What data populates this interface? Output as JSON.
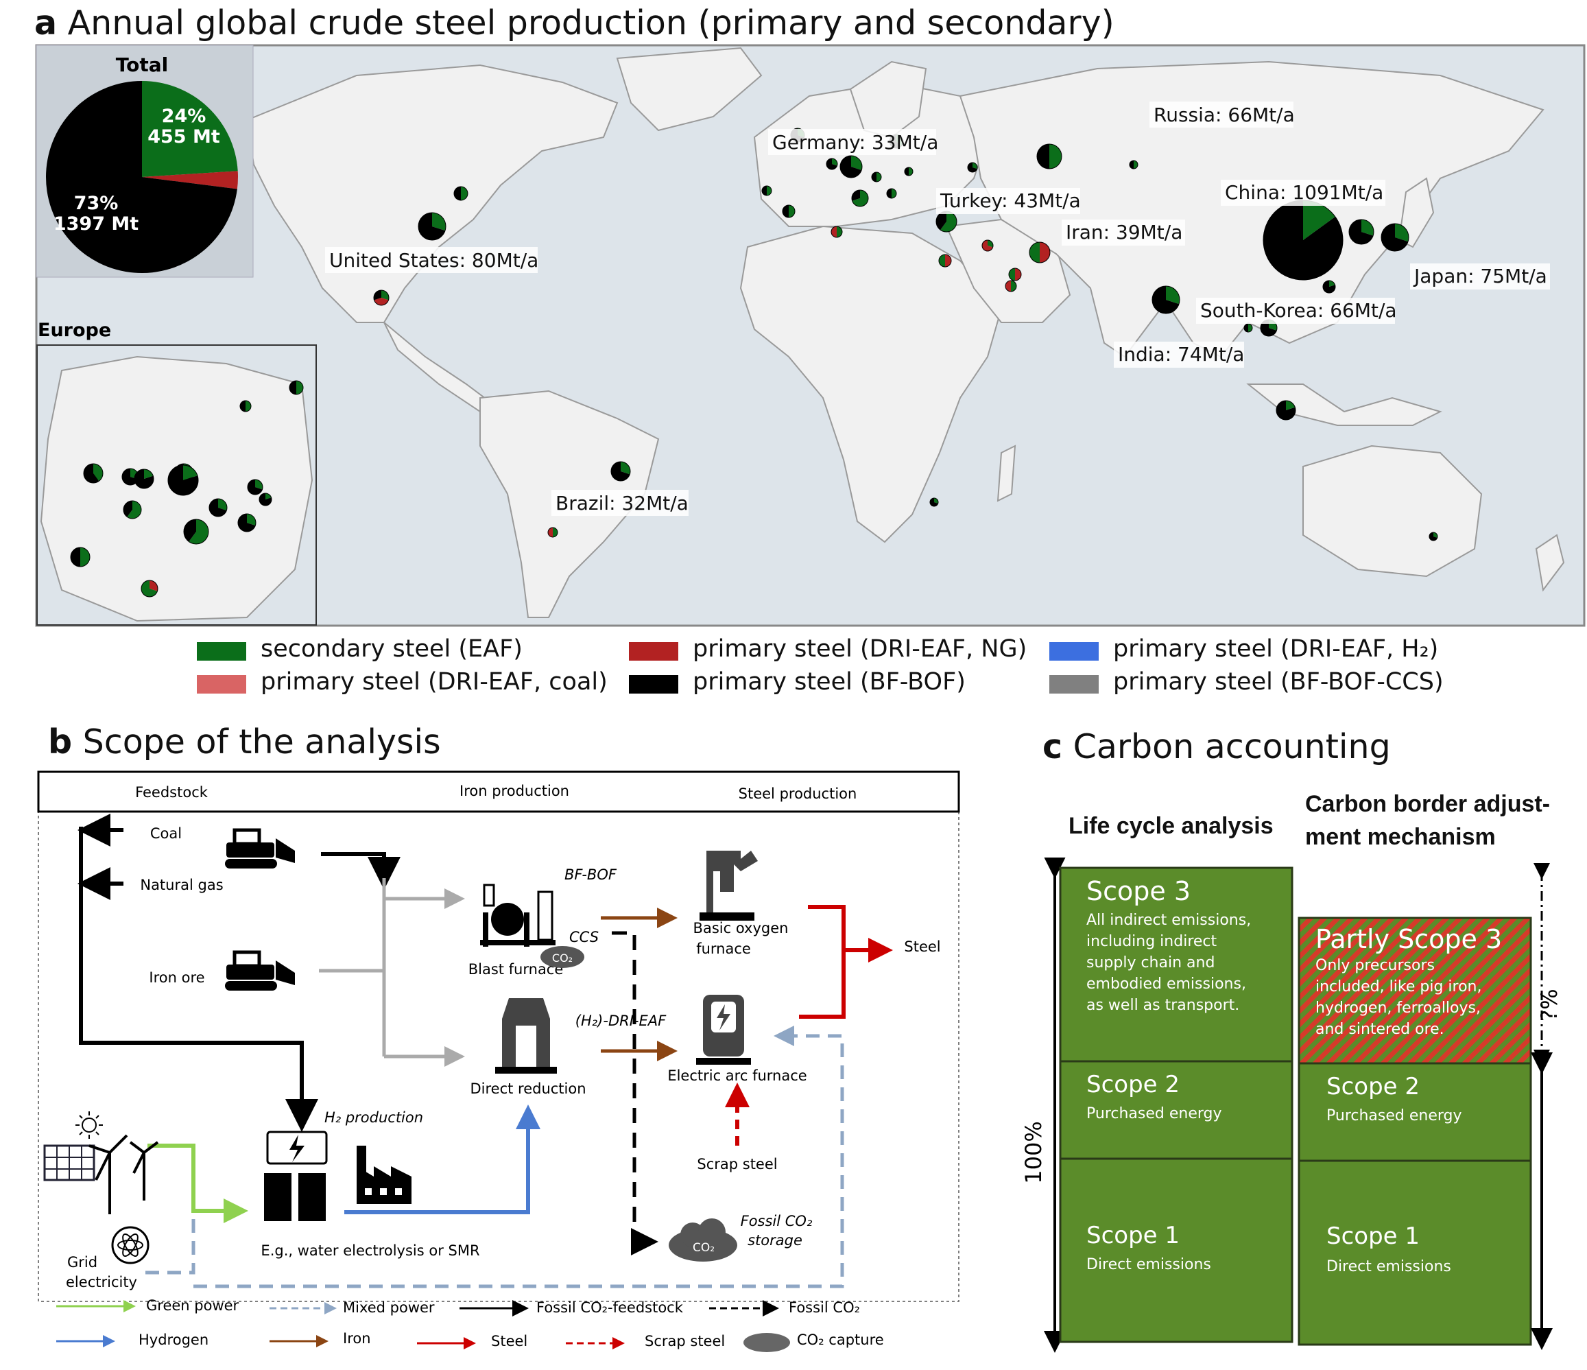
{
  "panel_a": {
    "letter": "a",
    "title": "Annual global crude steel production (primary and secondary)",
    "total": {
      "label": "Total",
      "secondary": {
        "pct": "24%",
        "amount": "455 Mt",
        "fraction": 0.24
      },
      "primary_ng": {
        "fraction": 0.03
      },
      "primary_bfbof": {
        "pct": "73%",
        "amount": "1397 Mt",
        "fraction": 0.73
      }
    },
    "europe_label": "Europe",
    "countries": [
      {
        "name": "United States: 80Mt/a"
      },
      {
        "name": "Germany: 33Mt/a"
      },
      {
        "name": "Russia: 66Mt/a"
      },
      {
        "name": "Turkey: 43Mt/a"
      },
      {
        "name": "Iran: 39Mt/a"
      },
      {
        "name": "China: 1091Mt/a"
      },
      {
        "name": "Japan: 75Mt/a"
      },
      {
        "name": "South-Korea: 66Mt/a"
      },
      {
        "name": "India: 74Mt/a"
      },
      {
        "name": "Brazil: 32Mt/a"
      }
    ],
    "legend": [
      {
        "label": "secondary steel (EAF)",
        "color": "#0b6e1a"
      },
      {
        "label": "primary steel (DRI-EAF, NG)",
        "color": "#b22222"
      },
      {
        "label": "primary steel (DRI-EAF, H₂)",
        "color": "#3c6fe0"
      },
      {
        "label": "primary steel (DRI-EAF, coal)",
        "color": "#d96464"
      },
      {
        "label": "primary steel (BF-BOF)",
        "color": "#000000"
      },
      {
        "label": "primary steel (BF-BOF-CCS)",
        "color": "#808080"
      }
    ]
  },
  "panel_b": {
    "letter": "b",
    "title": "Scope of the analysis",
    "headers": [
      "Feedstock",
      "Iron production",
      "Steel production"
    ],
    "labels": {
      "coal": "Coal",
      "natural_gas": "Natural gas",
      "iron_ore": "Iron ore",
      "bf_bof": "BF-BOF",
      "ccs": "CCS",
      "co2_small": "CO₂",
      "blast_furnace": "Blast furnace",
      "basic_oxygen": "Basic oxygen",
      "furnace": "furnace",
      "steel": "Steel",
      "dri_eaf": "(H₂)-DRI-EAF",
      "direct_reduction": "Direct reduction",
      "electric_arc": "Electric arc furnace",
      "h2_production": "H₂ production",
      "scrap_steel": "Scrap steel",
      "fossil_storage_1": "Fossil CO₂",
      "fossil_storage_2": "storage",
      "grid": "Grid",
      "electricity": "electricity",
      "electrolysis": "E.g., water electrolysis or SMR"
    },
    "legend": [
      {
        "label": "Green power",
        "color": "#8fd14f"
      },
      {
        "label": "Mixed power",
        "color": "#8ea6c4"
      },
      {
        "label": "Fossil CO₂-feedstock",
        "color": "#000000"
      },
      {
        "label": "Fossil CO₂",
        "color": "#000000"
      },
      {
        "label": "Hydrogen",
        "color": "#4a7bd0"
      },
      {
        "label": "Iron",
        "color": "#8b4513"
      },
      {
        "label": "Steel",
        "color": "#cc0000"
      },
      {
        "label": "Scrap steel",
        "color": "#cc0000"
      },
      {
        "label": "CO₂ capture",
        "color": "#666666"
      }
    ]
  },
  "panel_c": {
    "letter": "c",
    "title": "Carbon accounting",
    "col1_title": "Life cycle analysis",
    "col2_title_1": "Carbon border adjust-",
    "col2_title_2": "ment mechanism",
    "pct_full": "100%",
    "pct_unknown": "?%",
    "col1": [
      {
        "title": "Scope 3",
        "lines": [
          "All indirect emissions,",
          "including indirect",
          "supply chain and",
          "embodied emissions,",
          "as well as transport."
        ]
      },
      {
        "title": "Scope 2",
        "lines": [
          "Purchased energy"
        ]
      },
      {
        "title": "Scope 1",
        "lines": [
          "Direct emissions"
        ]
      }
    ],
    "col2": [
      {
        "title": "Partly Scope 3",
        "lines": [
          "Only precursors",
          "included, like pig iron,",
          "hydrogen, ferroalloys,",
          "and sintered  ore."
        ]
      },
      {
        "title": "Scope 2",
        "lines": [
          "Purchased energy"
        ]
      },
      {
        "title": "Scope 1",
        "lines": [
          "Direct emissions"
        ]
      }
    ],
    "colors": {
      "green": "#5b8c2a",
      "red": "#d63a2a"
    }
  }
}
